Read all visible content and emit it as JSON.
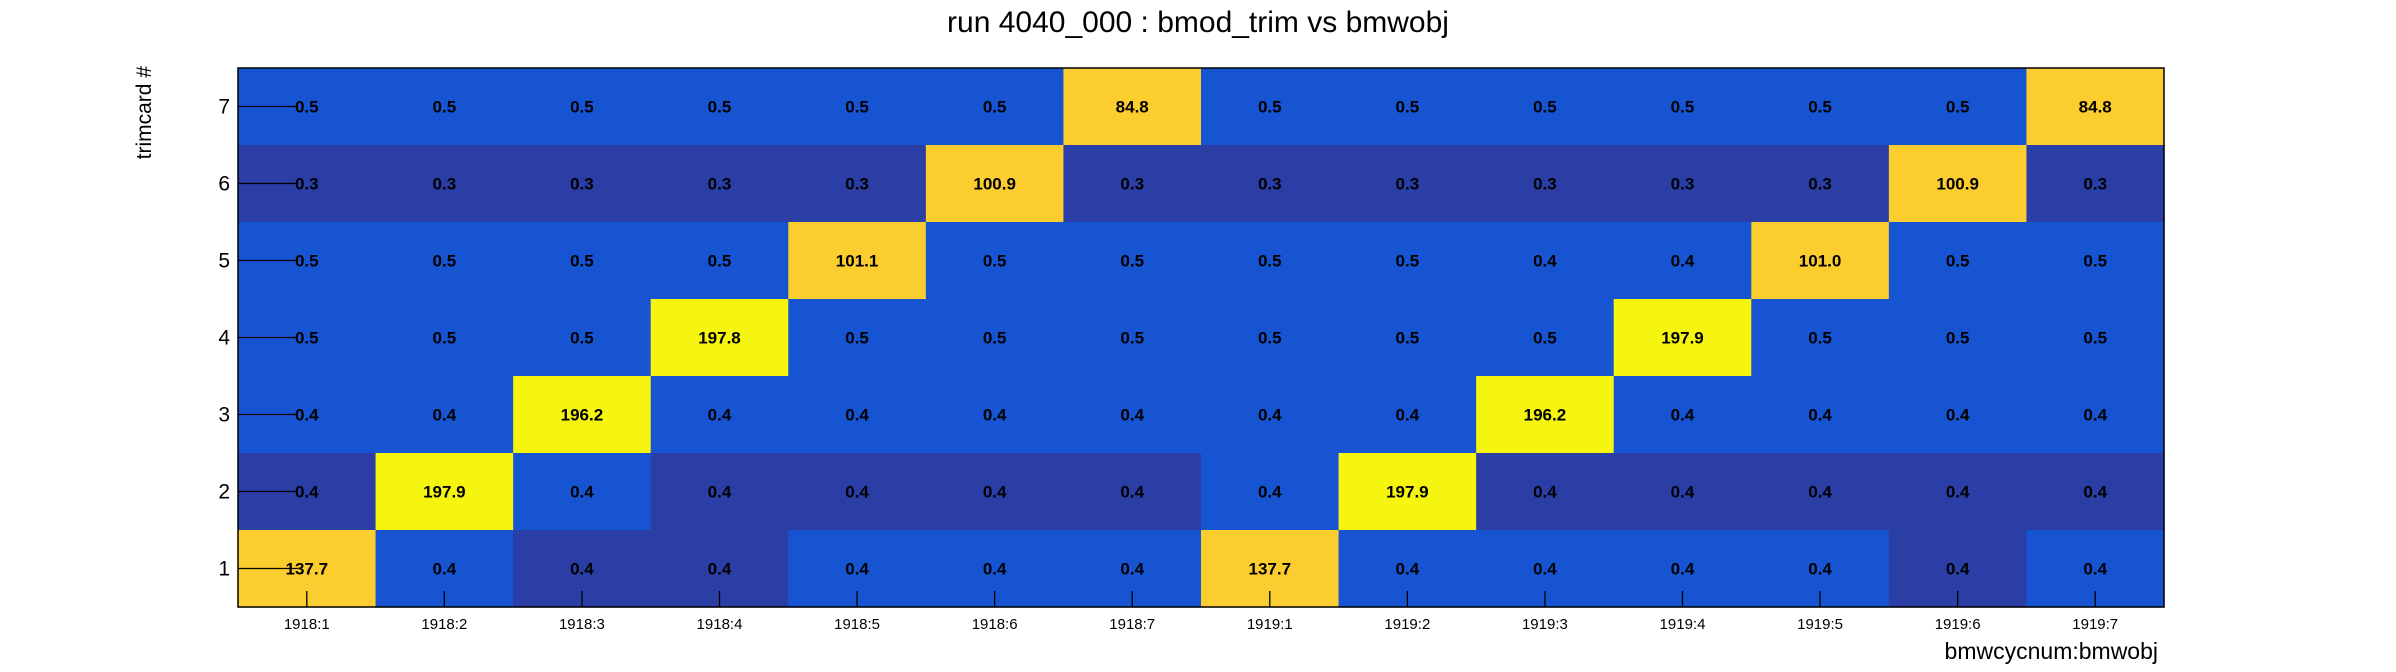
{
  "chart_data": {
    "type": "heatmap",
    "title": "run 4040_000 : bmod_trim vs bmwobj",
    "xlabel": "bmwcycnum:bmwobj",
    "ylabel": "trimcard #",
    "x_categories": [
      "1918:1",
      "1918:2",
      "1918:3",
      "1918:4",
      "1918:5",
      "1918:6",
      "1918:7",
      "1919:1",
      "1919:2",
      "1919:3",
      "1919:4",
      "1919:5",
      "1919:6",
      "1919:7"
    ],
    "y_categories": [
      "1",
      "2",
      "3",
      "4",
      "5",
      "6",
      "7"
    ],
    "rows": [
      {
        "y": "7",
        "values": [
          "0.5",
          "0.5",
          "0.5",
          "0.5",
          "0.5",
          "0.5",
          "84.8",
          "0.5",
          "0.5",
          "0.5",
          "0.5",
          "0.5",
          "0.5",
          "84.8"
        ]
      },
      {
        "y": "6",
        "values": [
          "0.3",
          "0.3",
          "0.3",
          "0.3",
          "0.3",
          "100.9",
          "0.3",
          "0.3",
          "0.3",
          "0.3",
          "0.3",
          "0.3",
          "100.9",
          "0.3"
        ]
      },
      {
        "y": "5",
        "values": [
          "0.5",
          "0.5",
          "0.5",
          "0.5",
          "101.1",
          "0.5",
          "0.5",
          "0.5",
          "0.5",
          "0.4",
          "0.4",
          "101.0",
          "0.5",
          "0.5"
        ]
      },
      {
        "y": "4",
        "values": [
          "0.5",
          "0.5",
          "0.5",
          "197.8",
          "0.5",
          "0.5",
          "0.5",
          "0.5",
          "0.5",
          "0.5",
          "197.9",
          "0.5",
          "0.5",
          "0.5"
        ]
      },
      {
        "y": "3",
        "values": [
          "0.4",
          "0.4",
          "196.2",
          "0.4",
          "0.4",
          "0.4",
          "0.4",
          "0.4",
          "0.4",
          "196.2",
          "0.4",
          "0.4",
          "0.4",
          "0.4"
        ]
      },
      {
        "y": "2",
        "values": [
          "0.4",
          "197.9",
          "0.4",
          "0.4",
          "0.4",
          "0.4",
          "0.4",
          "0.4",
          "197.9",
          "0.4",
          "0.4",
          "0.4",
          "0.4",
          "0.4"
        ]
      },
      {
        "y": "1",
        "values": [
          "137.7",
          "0.4",
          "0.4",
          "0.4",
          "0.4",
          "0.4",
          "0.4",
          "137.7",
          "0.4",
          "0.4",
          "0.4",
          "0.4",
          "0.4",
          "0.4"
        ]
      }
    ],
    "colors": {
      "high": "#f5f50f",
      "mid": "#fbcd2e",
      "low_a": "#1654d2",
      "low_b": "#2a3ea6"
    },
    "grid": false,
    "legend": "none"
  }
}
